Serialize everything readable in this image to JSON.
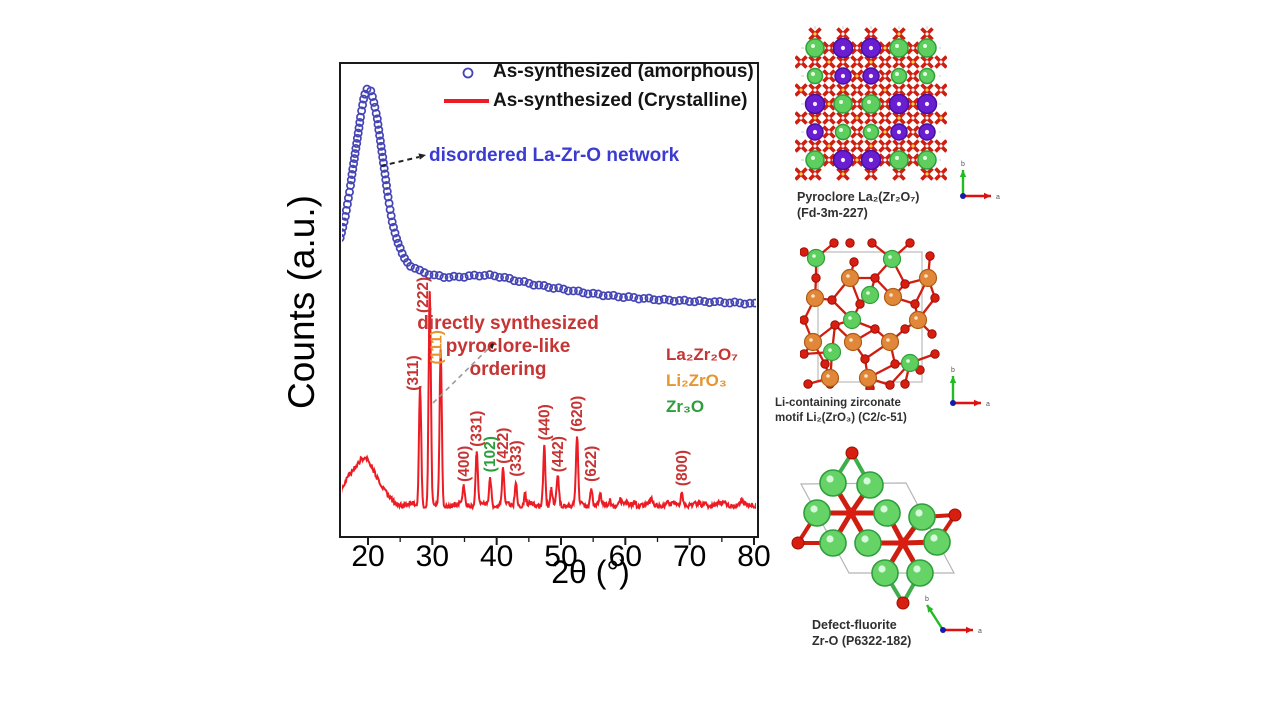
{
  "chart": {
    "y_axis_label": "Counts (a.u.)",
    "x_axis_label": "2θ (°)",
    "x_ticks": [
      20,
      30,
      40,
      50,
      60,
      70,
      80
    ],
    "legend": [
      {
        "label": "As-synthesized (amorphous)",
        "marker": "open-circle",
        "color": "#4545b5"
      },
      {
        "label": "As-synthesized (Crystalline)",
        "marker": "line",
        "color": "#ed1c24"
      }
    ],
    "annotations": {
      "amorphous": "disordered La-Zr-O network",
      "crystalline_line1": "directly synthesized",
      "crystalline_line2": "pyroclore-like ordering"
    },
    "phase_legend": [
      {
        "key": "La2Zr2O7",
        "formula": "La₂Zr₂O₇",
        "color": "#c63434"
      },
      {
        "key": "Li2ZrO3",
        "formula": "Li₂ZrO₃",
        "color": "#e6952f"
      },
      {
        "key": "Zr3O",
        "formula": "Zr₃O",
        "color": "#2e9e3c"
      }
    ]
  },
  "chart_data": {
    "type": "line",
    "title": "",
    "xlabel": "2θ (°)",
    "ylabel": "Counts (a.u.)",
    "xlim": [
      15.6,
      80.6
    ],
    "grid": false,
    "legend_position": "top-center",
    "series": [
      {
        "name": "As-synthesized (amorphous)",
        "style": "open-circles",
        "color": "#4545b5",
        "points": [
          [
            15.65,
            31
          ],
          [
            16.5,
            41
          ],
          [
            17.2,
            53
          ],
          [
            17.8,
            66
          ],
          [
            18.4,
            78
          ],
          [
            18.9,
            88
          ],
          [
            19.4,
            96
          ],
          [
            19.9,
            99.5
          ],
          [
            20.4,
            99
          ],
          [
            20.9,
            94
          ],
          [
            21.4,
            87
          ],
          [
            21.9,
            76
          ],
          [
            22.5,
            63
          ],
          [
            23.1,
            50
          ],
          [
            23.8,
            38
          ],
          [
            24.6,
            29
          ],
          [
            25.5,
            22
          ],
          [
            26.5,
            18.4
          ],
          [
            28,
            15.7
          ],
          [
            30,
            13.8
          ],
          [
            32,
            12.9
          ],
          [
            34,
            12.9
          ],
          [
            36,
            13.4
          ],
          [
            38,
            13.8
          ],
          [
            40,
            13.4
          ],
          [
            42,
            12
          ],
          [
            44,
            10.6
          ],
          [
            47,
            8.8
          ],
          [
            50,
            7.4
          ],
          [
            54,
            5.5
          ],
          [
            58,
            4.1
          ],
          [
            62,
            3.2
          ],
          [
            66,
            2.3
          ],
          [
            70,
            1.8
          ],
          [
            74,
            1.4
          ],
          [
            78,
            0.9
          ],
          [
            80.5,
            0.5
          ]
        ]
      },
      {
        "name": "As-synthesized (Crystalline)",
        "style": "line",
        "color": "#ed1c24",
        "amorphous_hump": {
          "center": 19.6,
          "sigma": 1.9,
          "intensity": 21
        },
        "peaks": [
          {
            "hkl": "(311)",
            "two_theta": 28.1,
            "intensity": 56,
            "phase": "La2Zr2O7",
            "label_dx": -7,
            "label_dy": 5
          },
          {
            "hkl": "(222)",
            "two_theta": 29.6,
            "intensity": 100,
            "phase": "La2Zr2O7",
            "label_dx": -7,
            "label_dy": 21
          },
          {
            "hkl": "(111)",
            "two_theta": 31.3,
            "intensity": 73,
            "phase": "Li2ZrO3",
            "label_dx": -4,
            "label_dy": 15
          },
          {
            "hkl": "(400)",
            "two_theta": 34.9,
            "intensity": 8.5,
            "phase": "La2Zr2O7",
            "label_dx": 0,
            "label_dy": -5
          },
          {
            "hkl": "(331)",
            "two_theta": 36.9,
            "intensity": 25,
            "phase": "La2Zr2O7",
            "label_dx": 0,
            "label_dy": -5
          },
          {
            "hkl": "(102)",
            "two_theta": 39.0,
            "intensity": 13,
            "phase": "Zr3O",
            "label_dx": 0,
            "label_dy": -5
          },
          {
            "hkl": "(422)",
            "two_theta": 41.0,
            "intensity": 17,
            "phase": "La2Zr2O7",
            "label_dx": 0,
            "label_dy": -5
          },
          {
            "hkl": "(333)",
            "two_theta": 43.0,
            "intensity": 11,
            "phase": "La2Zr2O7",
            "label_dx": 0,
            "label_dy": -5
          },
          {
            "hkl": "(440)",
            "two_theta": 47.4,
            "intensity": 28,
            "phase": "La2Zr2O7",
            "label_dx": 0,
            "label_dy": -5
          },
          {
            "hkl": "(442)",
            "two_theta": 49.5,
            "intensity": 13,
            "phase": "La2Zr2O7",
            "label_dx": 0,
            "label_dy": -5
          },
          {
            "hkl": "(620)",
            "two_theta": 52.5,
            "intensity": 32,
            "phase": "La2Zr2O7",
            "label_dx": 0,
            "label_dy": -5
          },
          {
            "hkl": "(622)",
            "two_theta": 54.7,
            "intensity": 8.5,
            "phase": "La2Zr2O7",
            "label_dx": 0,
            "label_dy": -5
          },
          {
            "hkl": "(800)",
            "two_theta": 68.8,
            "intensity": 6.5,
            "phase": "La2Zr2O7",
            "label_dx": 0,
            "label_dy": -5
          }
        ],
        "minor_peaks": [
          [
            44.4,
            5
          ],
          [
            48.5,
            7
          ],
          [
            56.1,
            4
          ],
          [
            57.6,
            3
          ],
          [
            59.2,
            2.5
          ],
          [
            61.5,
            2
          ],
          [
            64.0,
            2
          ],
          [
            66.5,
            2
          ],
          [
            72.5,
            1.5
          ],
          [
            75.5,
            1.5
          ],
          [
            78.0,
            1.5
          ]
        ]
      }
    ]
  },
  "structures": [
    {
      "id": "pyrochlore",
      "caption_line1": "Pyroclore La₂(Zr₂O₇)",
      "caption_line2": "(Fd-3m-227)",
      "axis": {
        "up": "b",
        "right": "a"
      }
    },
    {
      "id": "li-zirconate",
      "caption_line1": "Li-containing zirconate",
      "caption_line2": "motif Li₂(ZrO₃) (C2/c-51)",
      "axis": {
        "up": "b",
        "right": "a"
      }
    },
    {
      "id": "defect-fluorite",
      "caption_line1": "Defect-fluorite",
      "caption_line2": "Zr-O (P6322-182)",
      "axis": {
        "up": "b",
        "right": "a"
      }
    }
  ],
  "colors": {
    "amorphous_series": "#4545b5",
    "crystalline_series": "#ed1c24",
    "blue_annotation": "#3b3bd1",
    "red_annotation": "#c63434",
    "purple_atom": "#6a1ed2",
    "green_atom": "#5ecf5e",
    "orange_atom": "#e0873a",
    "oxygen_atom": "#d81e10",
    "axis_up_arrow": "#22bb22",
    "axis_right_arrow": "#dd1111"
  }
}
